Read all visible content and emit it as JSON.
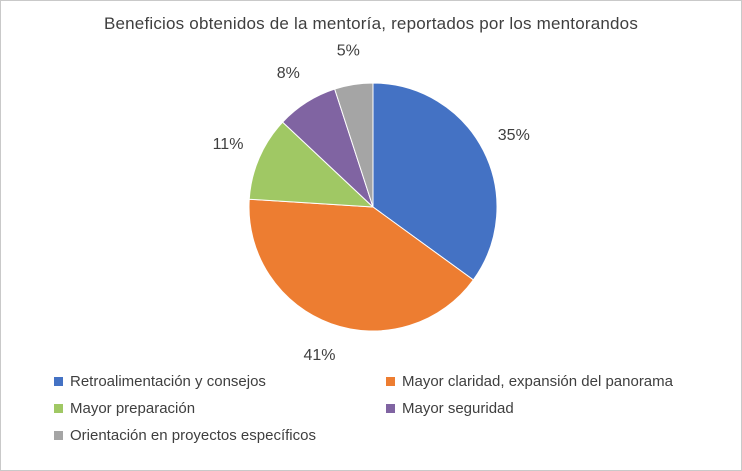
{
  "frame": {
    "background": "#ffffff",
    "border_color": "#c9c9c9"
  },
  "chart_data": {
    "type": "pie",
    "title": "Beneficios obtenidos de la mentoría, reportados por los mentorandos",
    "start_angle_deg": 0,
    "direction": "clockwise",
    "legend_position": "bottom",
    "label_color": "#3f3f3f",
    "slices": [
      {
        "label": "Retroalimentación y consejos",
        "value": 35,
        "pct_label": "35%",
        "color": "#4472C4"
      },
      {
        "label": "Mayor claridad, expansión del panorama",
        "value": 41,
        "pct_label": "41%",
        "color": "#ED7D31"
      },
      {
        "label": "Mayor preparación",
        "value": 11,
        "pct_label": "11%",
        "color": "#A0C864"
      },
      {
        "label": "Mayor seguridad",
        "value": 8,
        "pct_label": "8%",
        "color": "#8064A2"
      },
      {
        "label": "Orientación en proyectos específicos",
        "value": 5,
        "pct_label": "5%",
        "color": "#A5A5A5"
      }
    ]
  }
}
